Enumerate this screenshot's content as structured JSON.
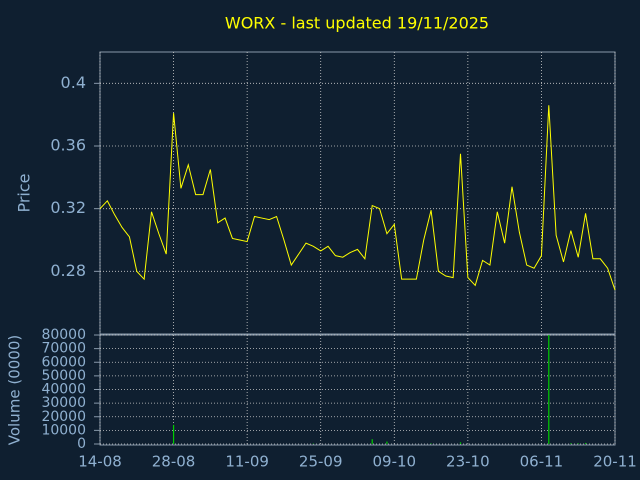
{
  "chart_data": [
    {
      "type": "line",
      "title": "WORX - last updated 19/11/2025",
      "ylabel": "Price",
      "color": "#ffff00",
      "grid": true,
      "ylim": [
        0.24,
        0.42
      ],
      "yticks": [
        0.28,
        0.32,
        0.36,
        0.4
      ],
      "values": [
        0.32,
        0.325,
        0.316,
        0.308,
        0.302,
        0.28,
        0.275,
        0.318,
        0.304,
        0.291,
        0.381,
        0.333,
        0.348,
        0.329,
        0.329,
        0.345,
        0.311,
        0.314,
        0.301,
        0.3,
        0.299,
        0.315,
        0.314,
        0.313,
        0.315,
        0.3,
        0.284,
        0.291,
        0.298,
        0.296,
        0.293,
        0.296,
        0.29,
        0.289,
        0.292,
        0.294,
        0.288,
        0.322,
        0.32,
        0.304,
        0.31,
        0.275,
        0.275,
        0.275,
        0.3,
        0.319,
        0.28,
        0.277,
        0.276,
        0.355,
        0.276,
        0.271,
        0.287,
        0.284,
        0.318,
        0.298,
        0.334,
        0.305,
        0.284,
        0.282,
        0.29,
        0.386,
        0.303,
        0.286,
        0.306,
        0.289,
        0.317,
        0.288,
        0.288,
        0.282,
        0.268
      ]
    },
    {
      "type": "bar",
      "ylabel": "Volume (0000)",
      "color": "#00cc00",
      "grid": true,
      "ylim": [
        0,
        80000
      ],
      "yticks": [
        0,
        10000,
        20000,
        30000,
        40000,
        50000,
        60000,
        70000,
        80000
      ],
      "categories": [
        "14-08",
        null,
        null,
        null,
        null,
        null,
        null,
        null,
        null,
        null,
        "28-08",
        null,
        null,
        null,
        null,
        null,
        null,
        null,
        null,
        null,
        "11-09",
        null,
        null,
        null,
        null,
        null,
        null,
        null,
        null,
        null,
        "25-09",
        null,
        null,
        null,
        null,
        null,
        null,
        null,
        null,
        null,
        "09-10",
        null,
        null,
        null,
        null,
        null,
        null,
        null,
        null,
        null,
        "23-10",
        null,
        null,
        null,
        null,
        null,
        null,
        null,
        null,
        null,
        "06-11",
        null,
        null,
        null,
        null,
        null,
        null,
        null,
        null,
        null,
        "20-11"
      ],
      "values": [
        0,
        0,
        0,
        0,
        0,
        0,
        0,
        0,
        0,
        0,
        14000,
        0,
        0,
        0,
        0,
        0,
        0,
        0,
        0,
        0,
        0,
        0,
        0,
        0,
        0,
        0,
        0,
        0,
        0,
        300,
        0,
        0,
        0,
        0,
        0,
        0,
        0,
        3500,
        0,
        1800,
        0,
        0,
        0,
        0,
        0,
        400,
        0,
        0,
        0,
        1200,
        0,
        0,
        0,
        0,
        0,
        0,
        0,
        0,
        0,
        0,
        0,
        80000,
        0,
        0,
        600,
        500,
        800,
        0,
        0,
        0,
        0
      ]
    }
  ]
}
